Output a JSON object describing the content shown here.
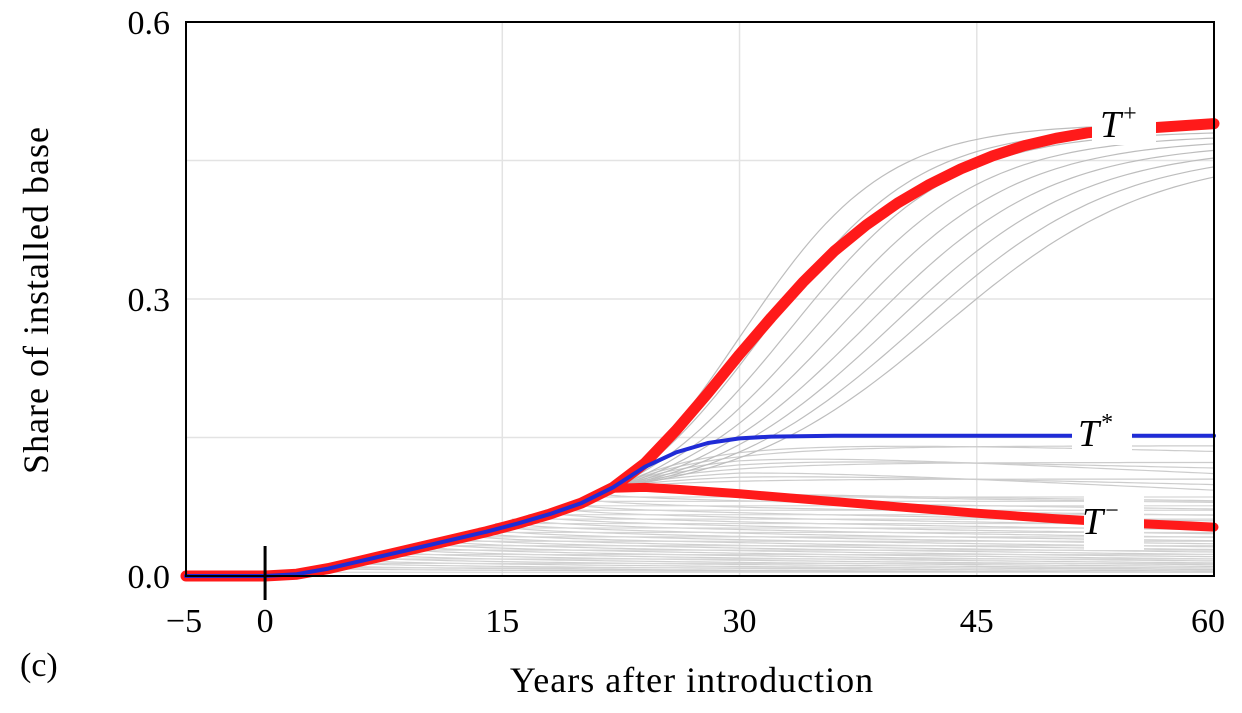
{
  "chart_data": {
    "type": "line",
    "panel_label": "(c)",
    "xlabel": "Years after introduction",
    "ylabel": "Share of installed base",
    "xlim": [
      -5,
      60
    ],
    "ylim": [
      0,
      0.6
    ],
    "x_ticks": [
      -5,
      0,
      15,
      30,
      45,
      60
    ],
    "x_tick_labels": [
      "−5",
      "0",
      "15",
      "30",
      "45",
      "60"
    ],
    "y_ticks": [
      0.0,
      0.3,
      0.6
    ],
    "y_tick_labels": [
      "0.0",
      "0.3",
      "0.6"
    ],
    "grid": true,
    "introduction_marker_x": 0,
    "series": [
      {
        "name": "T+",
        "label_main": "T",
        "label_sup": "+",
        "color": "#ff1a1a",
        "x": [
          -5,
          0,
          2,
          4,
          6,
          8,
          10,
          12,
          14,
          16,
          18,
          20,
          22,
          24,
          26,
          28,
          30,
          32,
          34,
          36,
          38,
          40,
          42,
          44,
          46,
          48,
          50,
          52,
          54,
          60
        ],
        "y": [
          0,
          0,
          0.002,
          0.008,
          0.016,
          0.024,
          0.032,
          0.04,
          0.048,
          0.057,
          0.067,
          0.079,
          0.096,
          0.122,
          0.158,
          0.198,
          0.24,
          0.28,
          0.318,
          0.352,
          0.38,
          0.404,
          0.424,
          0.441,
          0.455,
          0.466,
          0.474,
          0.48,
          0.483,
          0.49
        ]
      },
      {
        "name": "T*",
        "label_main": "T",
        "label_sup": "*",
        "color": "#1f2bd6",
        "x": [
          -5,
          0,
          2,
          4,
          6,
          8,
          10,
          12,
          14,
          16,
          18,
          20,
          22,
          24,
          26,
          28,
          30,
          32,
          36,
          40,
          50,
          60
        ],
        "y": [
          0,
          0,
          0.002,
          0.008,
          0.016,
          0.024,
          0.032,
          0.04,
          0.048,
          0.057,
          0.067,
          0.079,
          0.096,
          0.118,
          0.134,
          0.144,
          0.149,
          0.151,
          0.152,
          0.152,
          0.152,
          0.152
        ]
      },
      {
        "name": "T-",
        "label_main": "T",
        "label_sup": "−",
        "color": "#ff1a1a",
        "x": [
          -5,
          0,
          2,
          4,
          6,
          8,
          10,
          12,
          14,
          16,
          18,
          20,
          22,
          24,
          26,
          30,
          35,
          40,
          45,
          50,
          55,
          60
        ],
        "y": [
          0,
          0,
          0.002,
          0.008,
          0.016,
          0.024,
          0.032,
          0.04,
          0.048,
          0.057,
          0.067,
          0.079,
          0.095,
          0.096,
          0.094,
          0.089,
          0.082,
          0.075,
          0.068,
          0.062,
          0.057,
          0.053
        ]
      }
    ]
  }
}
